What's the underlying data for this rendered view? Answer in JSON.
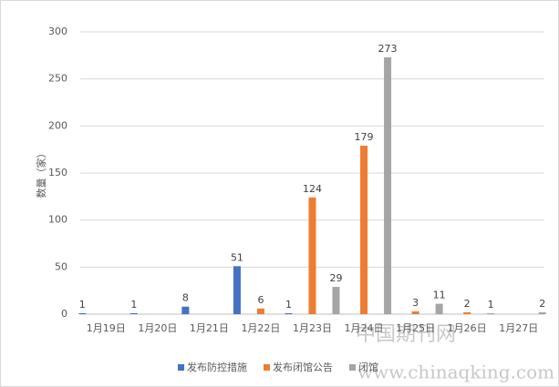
{
  "chart_data": {
    "type": "bar",
    "y_label": "数量（家）",
    "categories": [
      "1月19日",
      "1月20日",
      "1月21日",
      "1月22日",
      "1月23日",
      "1月24日",
      "1月25日",
      "1月26日",
      "1月27日"
    ],
    "series": [
      {
        "name": "发布防控措施",
        "color": "#4472c4",
        "values": [
          1,
          1,
          8,
          51,
          1,
          null,
          null,
          null,
          null
        ]
      },
      {
        "name": "发布闭馆公告",
        "color": "#ed7d31",
        "values": [
          null,
          null,
          null,
          6,
          124,
          179,
          3,
          2,
          null
        ]
      },
      {
        "name": "闭馆",
        "color": "#a5a5a5",
        "values": [
          null,
          null,
          null,
          null,
          29,
          273,
          11,
          1,
          2
        ]
      }
    ],
    "ylim": [
      0,
      300
    ],
    "yticks": [
      0,
      50,
      100,
      150,
      200,
      250,
      300
    ],
    "grid": true,
    "legend": "bottom",
    "watermark": [
      "中国期刊网",
      "www.chinaqking.com"
    ]
  }
}
